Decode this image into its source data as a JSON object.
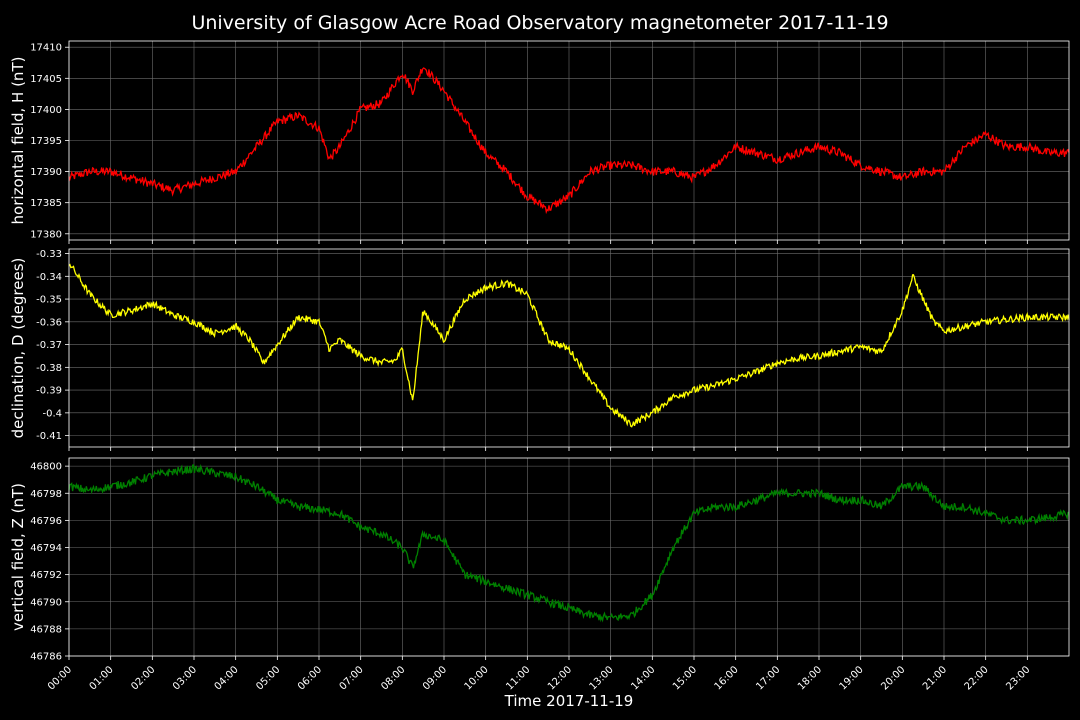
{
  "chart_data": {
    "type": "line",
    "title": "University of Glasgow Acre Road Observatory magnetometer 2017-11-19",
    "xlabel": "Time 2017-11-19",
    "x_ticks": [
      "00:00",
      "01:00",
      "02:00",
      "03:00",
      "04:00",
      "05:00",
      "06:00",
      "07:00",
      "08:00",
      "09:00",
      "10:00",
      "11:00",
      "12:00",
      "13:00",
      "14:00",
      "15:00",
      "16:00",
      "17:00",
      "18:00",
      "19:00",
      "20:00",
      "21:00",
      "22:00",
      "23:00"
    ],
    "xlim": [
      "00:00",
      "24:00"
    ],
    "grid": true,
    "panels": [
      {
        "ylabel": "horizontal field, H (nT)",
        "color": "#ff0000",
        "ylim": [
          17379,
          17411
        ],
        "yticks": [
          17380,
          17385,
          17390,
          17395,
          17400,
          17405,
          17410
        ],
        "noise": 0.7,
        "series": {
          "x": [
            "00:00",
            "00:30",
            "01:00",
            "01:30",
            "02:00",
            "02:30",
            "03:00",
            "03:30",
            "04:00",
            "04:30",
            "05:00",
            "05:30",
            "06:00",
            "06:15",
            "06:30",
            "07:00",
            "07:30",
            "08:00",
            "08:15",
            "08:30",
            "09:00",
            "09:30",
            "10:00",
            "10:30",
            "11:00",
            "11:30",
            "12:00",
            "12:30",
            "13:00",
            "13:30",
            "14:00",
            "14:30",
            "15:00",
            "15:30",
            "16:00",
            "16:30",
            "17:00",
            "17:30",
            "18:00",
            "18:30",
            "19:00",
            "19:30",
            "20:00",
            "20:30",
            "21:00",
            "21:30",
            "22:00",
            "22:30",
            "23:00",
            "23:30",
            "24:00"
          ],
          "y": [
            17389,
            17390,
            17390,
            17389,
            17388,
            17387,
            17388,
            17389,
            17390,
            17394,
            17398,
            17399,
            17397,
            17392,
            17394,
            17400,
            17401,
            17406,
            17403,
            17407,
            17403,
            17398,
            17393,
            17390,
            17386,
            17384,
            17386,
            17390,
            17391,
            17391,
            17390,
            17390,
            17389,
            17391,
            17394,
            17393,
            17392,
            17393,
            17394,
            17393,
            17391,
            17390,
            17389,
            17390,
            17390,
            17394,
            17396,
            17394,
            17394,
            17393,
            17393
          ]
        }
      },
      {
        "ylabel": "declination, D (degrees)",
        "color": "#ffff00",
        "ylim": [
          -0.415,
          -0.328
        ],
        "yticks": [
          -0.33,
          -0.34,
          -0.35,
          -0.36,
          -0.37,
          -0.38,
          -0.39,
          -0.4,
          -0.41
        ],
        "noise": 0.0015,
        "series": {
          "x": [
            "00:00",
            "00:30",
            "01:00",
            "01:30",
            "02:00",
            "02:30",
            "03:00",
            "03:30",
            "04:00",
            "04:20",
            "04:40",
            "05:00",
            "05:30",
            "06:00",
            "06:15",
            "06:30",
            "07:00",
            "07:30",
            "07:50",
            "08:00",
            "08:15",
            "08:30",
            "09:00",
            "09:30",
            "10:00",
            "10:30",
            "11:00",
            "11:30",
            "12:00",
            "12:30",
            "13:00",
            "13:30",
            "14:00",
            "14:30",
            "15:00",
            "15:30",
            "16:00",
            "16:30",
            "17:00",
            "17:30",
            "18:00",
            "18:30",
            "19:00",
            "19:30",
            "20:00",
            "20:15",
            "20:30",
            "20:45",
            "21:00",
            "21:30",
            "22:00",
            "22:30",
            "23:00",
            "23:30",
            "24:00"
          ],
          "y": [
            -0.334,
            -0.348,
            -0.357,
            -0.355,
            -0.352,
            -0.357,
            -0.36,
            -0.365,
            -0.362,
            -0.368,
            -0.378,
            -0.37,
            -0.358,
            -0.36,
            -0.372,
            -0.368,
            -0.375,
            -0.378,
            -0.377,
            -0.372,
            -0.395,
            -0.355,
            -0.368,
            -0.35,
            -0.345,
            -0.343,
            -0.348,
            -0.368,
            -0.372,
            -0.385,
            -0.398,
            -0.405,
            -0.4,
            -0.393,
            -0.39,
            -0.388,
            -0.385,
            -0.382,
            -0.378,
            -0.376,
            -0.375,
            -0.373,
            -0.371,
            -0.373,
            -0.355,
            -0.34,
            -0.35,
            -0.36,
            -0.364,
            -0.362,
            -0.36,
            -0.359,
            -0.358,
            -0.358,
            -0.358
          ]
        }
      },
      {
        "ylabel": "vertical field, Z (nT)",
        "color": "#008000",
        "ylim": [
          46786,
          46800.6
        ],
        "yticks": [
          46786,
          46788,
          46790,
          46792,
          46794,
          46796,
          46798,
          46800
        ],
        "noise": 0.3,
        "series": {
          "x": [
            "00:00",
            "00:30",
            "01:00",
            "01:30",
            "02:00",
            "02:30",
            "03:00",
            "03:30",
            "04:00",
            "04:30",
            "05:00",
            "05:30",
            "06:00",
            "06:30",
            "07:00",
            "07:30",
            "08:00",
            "08:15",
            "08:30",
            "09:00",
            "09:30",
            "10:00",
            "10:30",
            "11:00",
            "11:30",
            "12:00",
            "12:30",
            "13:00",
            "13:30",
            "14:00",
            "14:30",
            "15:00",
            "15:30",
            "16:00",
            "16:30",
            "17:00",
            "17:30",
            "18:00",
            "18:30",
            "19:00",
            "19:30",
            "20:00",
            "20:30",
            "21:00",
            "21:30",
            "22:00",
            "22:30",
            "23:00",
            "23:30",
            "24:00"
          ],
          "y": [
            46798.5,
            46798.2,
            46798.5,
            46798.8,
            46799.3,
            46799.6,
            46799.8,
            46799.5,
            46799.2,
            46798.5,
            46797.5,
            46797.0,
            46796.8,
            46796.5,
            46795.5,
            46795.0,
            46794.0,
            46792.5,
            46795.0,
            46794.5,
            46792.0,
            46791.5,
            46791.0,
            46790.5,
            46790.0,
            46789.5,
            46789.0,
            46788.8,
            46789.0,
            46790.5,
            46794.0,
            46796.5,
            46797.0,
            46797.0,
            46797.5,
            46798.0,
            46798.0,
            46798.0,
            46797.5,
            46797.5,
            46797.0,
            46798.5,
            46798.5,
            46797.0,
            46797.0,
            46796.5,
            46796.0,
            46796.0,
            46796.2,
            46796.5
          ]
        }
      }
    ]
  }
}
